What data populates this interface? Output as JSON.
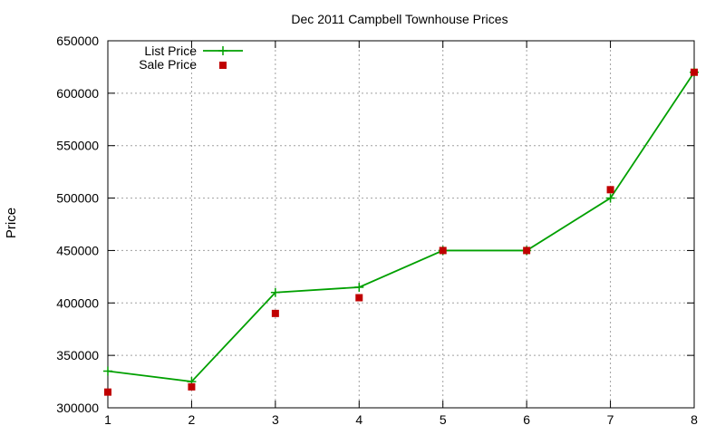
{
  "chart_data": {
    "type": "line",
    "title": "Dec 2011 Campbell Townhouse Prices",
    "xlabel": "",
    "ylabel": "Price",
    "xlim": [
      1,
      8
    ],
    "ylim": [
      300000,
      650000
    ],
    "xticks": [
      1,
      2,
      3,
      4,
      5,
      6,
      7,
      8
    ],
    "yticks": [
      300000,
      350000,
      400000,
      450000,
      500000,
      550000,
      600000,
      650000
    ],
    "grid": true,
    "legend_position": "top-left",
    "series": [
      {
        "name": "List Price",
        "style": "lines+points",
        "color": "#00a000",
        "x": [
          1,
          2,
          3,
          4,
          5,
          6,
          7,
          8
        ],
        "y": [
          335000,
          325000,
          410000,
          415000,
          450000,
          450000,
          500000,
          620000
        ]
      },
      {
        "name": "Sale Price",
        "style": "points",
        "color": "#c00000",
        "x": [
          1,
          2,
          3,
          4,
          5,
          6,
          7,
          8
        ],
        "y": [
          315000,
          320000,
          390000,
          405000,
          450000,
          450000,
          508000,
          620000
        ]
      }
    ]
  }
}
